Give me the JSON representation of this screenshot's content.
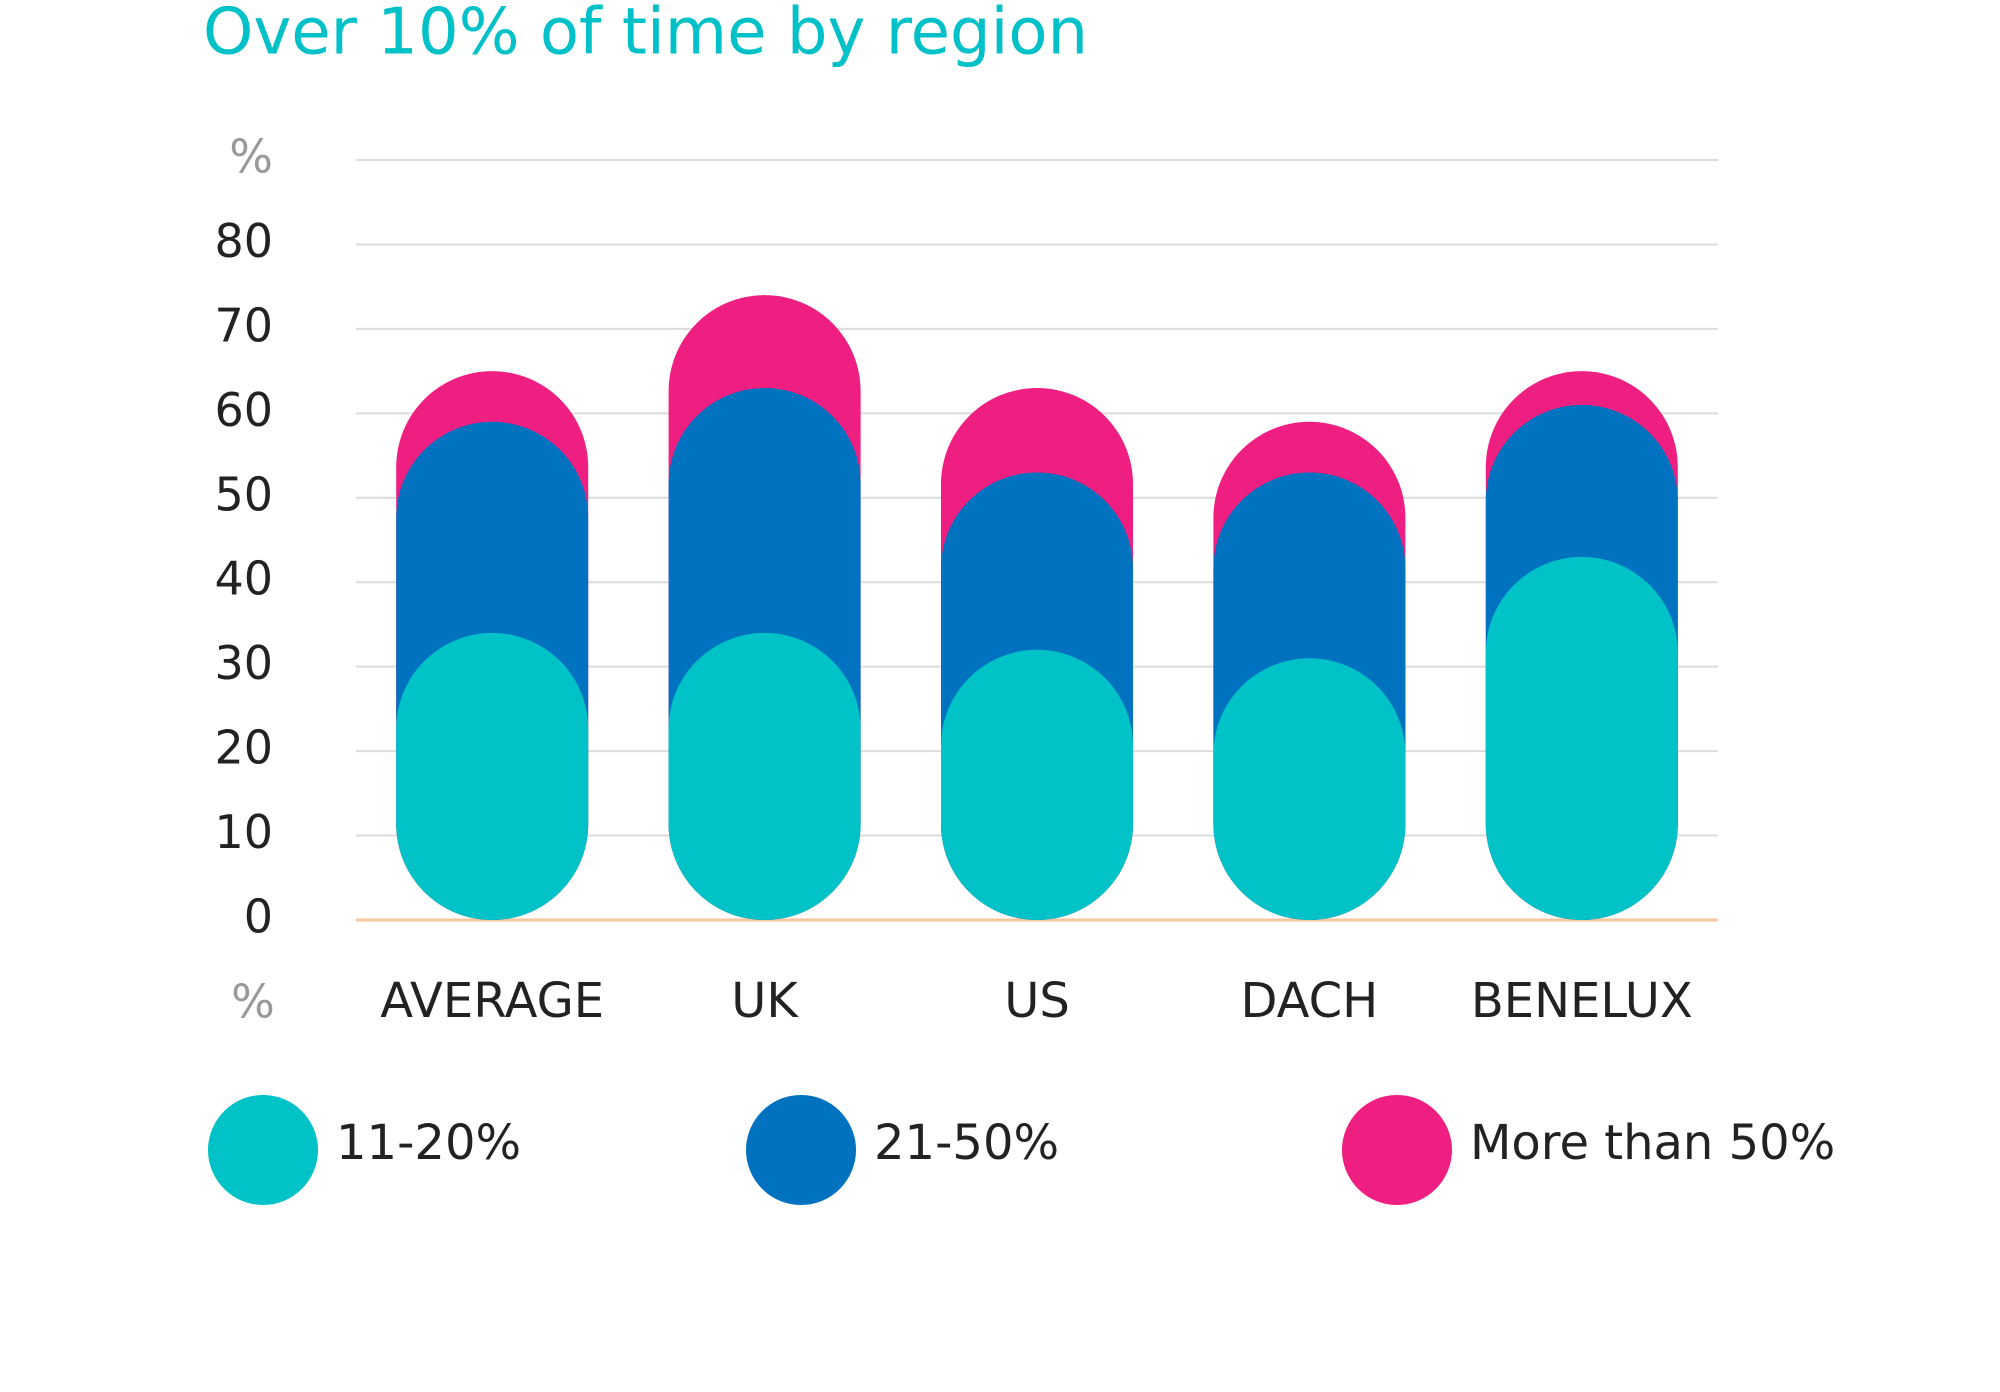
{
  "chart_data": {
    "type": "stacked_pill_bar",
    "title": "Over 10% of time by region",
    "y_unit_label": "%",
    "categories": [
      "AVERAGE",
      "UK",
      "US",
      "DACH",
      "BENELUX"
    ],
    "series": [
      {
        "name": "11-20%",
        "color": "#00c2c7",
        "values": [
          34,
          34,
          32,
          31,
          43
        ]
      },
      {
        "name": "21-50%",
        "color": "#0072c0",
        "values": [
          25,
          29,
          21,
          22,
          18
        ]
      },
      {
        "name": "More than 50%",
        "color": "#ee1f80",
        "values": [
          6,
          11,
          10,
          6,
          4
        ]
      }
    ],
    "ylim": [
      0,
      90
    ],
    "yticks": [
      0,
      10,
      20,
      30,
      40,
      50,
      60,
      70,
      80,
      {
        "value": 90,
        "label": "%"
      }
    ],
    "grid": true
  }
}
